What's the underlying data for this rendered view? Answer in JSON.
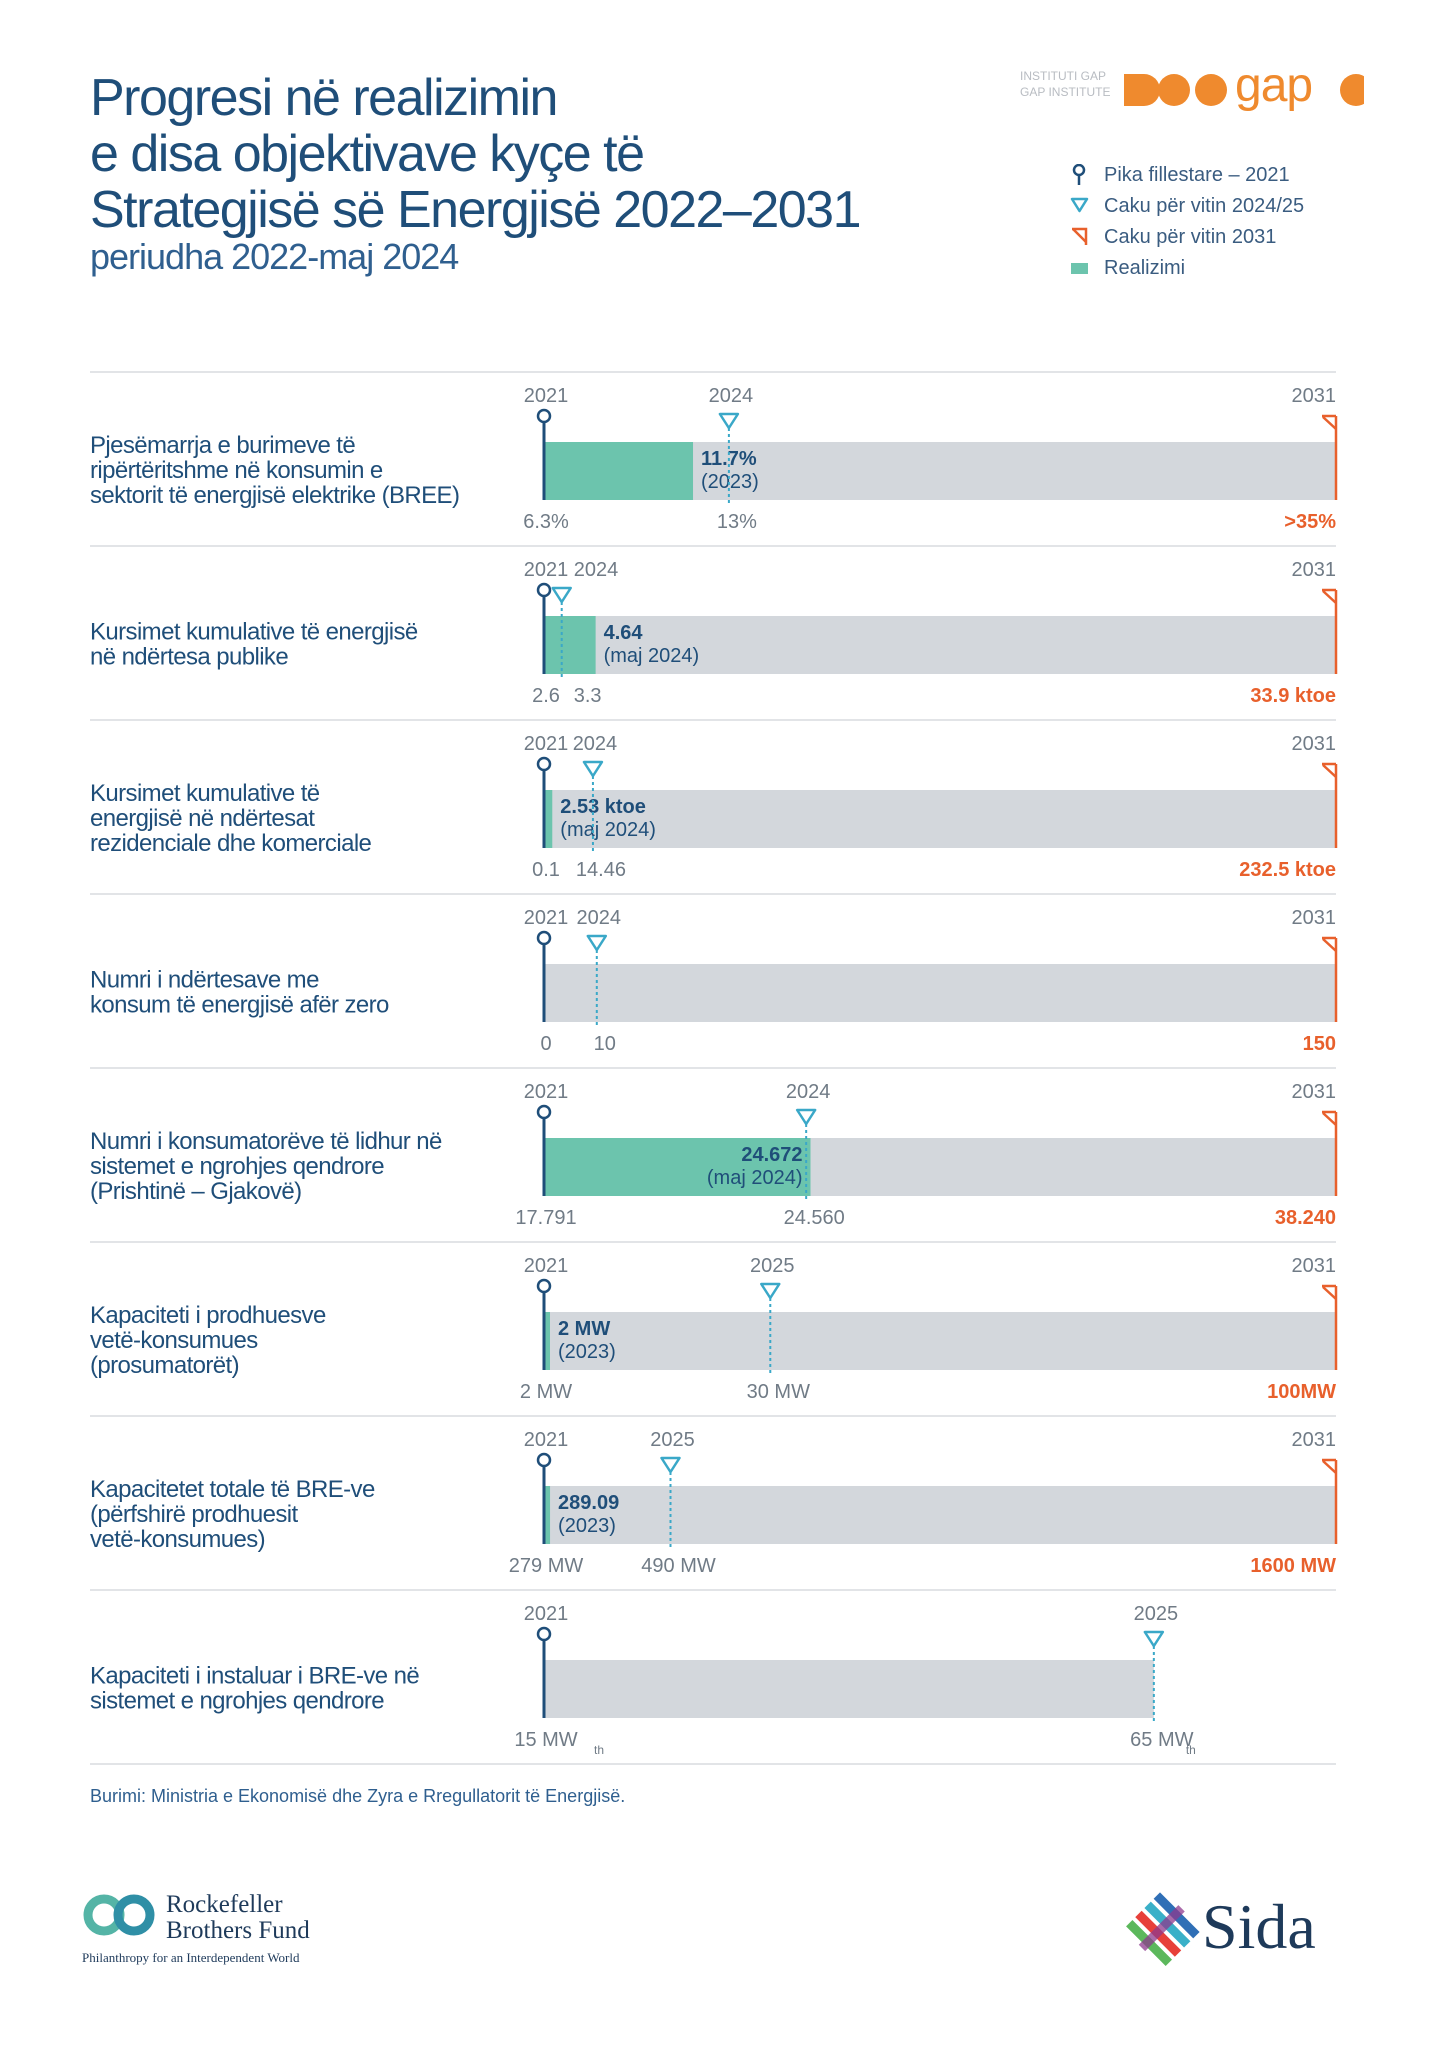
{
  "title_lines": [
    "Progresi në realizimin",
    "e disa objektivave kyçe të",
    "Strategjisë së Energjisë 2022–2031"
  ],
  "subtitle": "periudha 2022-maj 2024",
  "brand": {
    "small_line1": "INSTITUTI GAP",
    "small_line2": "GAP INSTITUTE",
    "word": "gap"
  },
  "legend": [
    {
      "label": "Pika fillestare – 2021",
      "icon": "pin-icon"
    },
    {
      "label": "Caku për vitin 2024/25",
      "icon": "triangle-down-icon"
    },
    {
      "label": "Caku për vitin 2031",
      "icon": "flag-icon"
    },
    {
      "label": "Realizimi",
      "icon": "square-icon"
    }
  ],
  "colors": {
    "progress": "#6cc4ad",
    "track": "#d3d7dc",
    "target_mid": "#3aa8c8",
    "target_2031": "#e8602c",
    "navy": "#1f4e79",
    "gray_text": "#707b86"
  },
  "chart_data": {
    "type": "bar",
    "title": "Progresi në realizimin e disa objektivave kyçe të Strategjisë së Energjisë 2022–2031",
    "subtitle": "periudha 2022-maj 2024",
    "rows": [
      {
        "label": [
          "Pjesëmarrja e burimeve të",
          "ripërtëritshme në konsumin e",
          "sektorit të energjisë elektrike (BREE)"
        ],
        "baseline": 6.3,
        "baseline_label": "6.3%",
        "baseline_year": "2021",
        "mid_target": 13,
        "mid_target_label": "13%",
        "mid_year": "2024",
        "final_target": 35,
        "final_target_label": ">35%",
        "final_year": "2031",
        "achieved": 11.7,
        "achieved_value": "11.7%",
        "achieved_date": "(2023)"
      },
      {
        "label": [
          "Kursimet kumulative të energjisë",
          "në ndërtesa publike"
        ],
        "baseline": 2.6,
        "baseline_label": "2.6",
        "baseline_year": "2021",
        "mid_target": 3.3,
        "mid_target_label": "3.3",
        "mid_year": "2024",
        "final_target": 33.9,
        "final_target_label": "33.9 ktoe",
        "final_year": "2031",
        "achieved": 4.64,
        "achieved_value": "4.64",
        "achieved_date": "(maj 2024)"
      },
      {
        "label": [
          "Kursimet kumulative të",
          "energjisë në ndërtesat",
          "rezidenciale dhe komerciale"
        ],
        "baseline": 0.1,
        "baseline_label": "0.1",
        "baseline_year": "2021",
        "mid_target": 14.46,
        "mid_target_label": "14.46",
        "mid_year": "2024",
        "final_target": 232.5,
        "final_target_label": "232.5 ktoe",
        "final_year": "2031",
        "achieved": 2.53,
        "achieved_value": "2.53 ktoe",
        "achieved_date": "(maj 2024)"
      },
      {
        "label": [
          "Numri i ndërtesave me",
          "konsum të energjisë afër zero"
        ],
        "baseline": 0,
        "baseline_label": "0",
        "baseline_year": "2021",
        "mid_target": 10,
        "mid_target_label": "10",
        "mid_year": "2024",
        "final_target": 150,
        "final_target_label": "150",
        "final_year": "2031",
        "achieved": null,
        "achieved_value": "",
        "achieved_date": ""
      },
      {
        "label": [
          "Numri i konsumatorëve të lidhur në",
          "sistemet e ngrohjes qendrore",
          "(Prishtinë – Gjakovë)"
        ],
        "baseline": 17791,
        "baseline_label": "17.791",
        "baseline_year": "2021",
        "mid_target": 24560,
        "mid_target_label": "24.560",
        "mid_year": "2024",
        "final_target": 38240,
        "final_target_label": "38.240",
        "final_year": "2031",
        "achieved": 24672,
        "achieved_value": "24.672",
        "achieved_date": "(maj 2024)"
      },
      {
        "label": [
          "Kapaciteti i prodhuesve",
          "vetë-konsumues",
          "(prosumatorët)"
        ],
        "baseline": 2,
        "baseline_label": "2 MW",
        "baseline_year": "2021",
        "mid_target": 30,
        "mid_target_label": "30 MW",
        "mid_year": "2025",
        "final_target": 100,
        "final_target_label": "100MW",
        "final_year": "2031",
        "achieved": 2,
        "achieved_value": "2 MW",
        "achieved_date": "(2023)"
      },
      {
        "label": [
          "Kapacitetet totale të BRE-ve",
          "(përfshirë prodhuesit",
          "vetë-konsumues)"
        ],
        "baseline": 279,
        "baseline_label": "279 MW",
        "baseline_year": "2021",
        "mid_target": 490,
        "mid_target_label": "490 MW",
        "mid_year": "2025",
        "final_target": 1600,
        "final_target_label": "1600 MW",
        "final_year": "2031",
        "achieved": 289.09,
        "achieved_value": "289.09",
        "achieved_date": "(2023)"
      },
      {
        "label": [
          "Kapaciteti i instaluar i BRE-ve në",
          "sistemet e ngrohjes qendrore"
        ],
        "baseline": 15,
        "baseline_label": "15 MW",
        "baseline_sub": "th",
        "baseline_year": "2021",
        "mid_target": 65,
        "mid_target_label": "65 MW",
        "mid_sub": "th",
        "mid_year": "2025",
        "final_target": null,
        "final_target_label": "",
        "final_year": "",
        "achieved": null,
        "achieved_value": "",
        "achieved_date": ""
      }
    ]
  },
  "source": "Burimi: Ministria e Ekonomisë dhe Zyra e Rregullatorit të Energjisë.",
  "rbf": {
    "name1": "Rockefeller",
    "name2": "Brothers Fund",
    "tagline": "Philanthropy for an Interdependent World"
  },
  "sida": {
    "word": "Sida"
  }
}
